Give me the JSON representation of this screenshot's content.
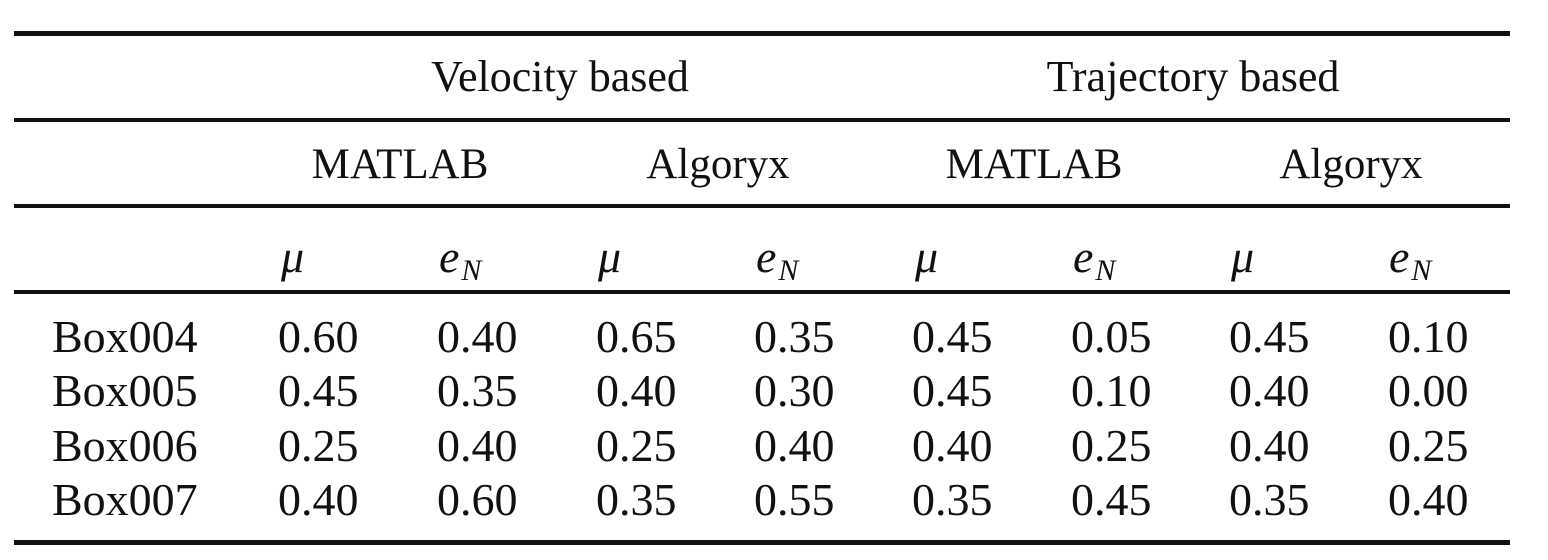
{
  "table": {
    "groups": [
      "Velocity based",
      "Trajectory based"
    ],
    "subgroups": [
      "MATLAB",
      "Algoryx",
      "MATLAB",
      "Algoryx"
    ],
    "param_symbols": {
      "mu": "μ",
      "e": "e",
      "e_sub": "N"
    },
    "rows": [
      {
        "label": "Box004",
        "values": [
          "0.60",
          "0.40",
          "0.65",
          "0.35",
          "0.45",
          "0.05",
          "0.45",
          "0.10"
        ]
      },
      {
        "label": "Box005",
        "values": [
          "0.45",
          "0.35",
          "0.40",
          "0.30",
          "0.45",
          "0.10",
          "0.40",
          "0.00"
        ]
      },
      {
        "label": "Box006",
        "values": [
          "0.25",
          "0.40",
          "0.25",
          "0.40",
          "0.40",
          "0.25",
          "0.40",
          "0.25"
        ]
      },
      {
        "label": "Box007",
        "values": [
          "0.40",
          "0.60",
          "0.35",
          "0.55",
          "0.35",
          "0.45",
          "0.35",
          "0.40"
        ]
      }
    ]
  }
}
